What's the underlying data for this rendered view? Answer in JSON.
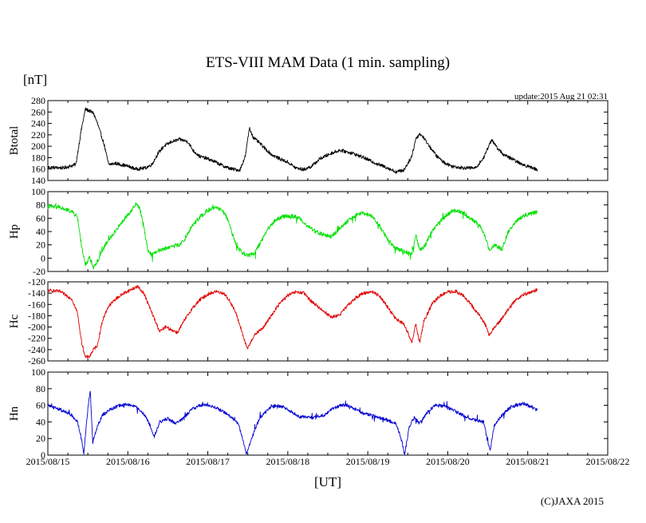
{
  "chart_data": {
    "type": "line",
    "title": "ETS-VIII MAM Data (1 min. sampling)",
    "unit_label": "[nT]",
    "update_text": "update:2015 Aug 21 02:31",
    "xlabel": "[UT]",
    "credit": "(C)JAXA 2015",
    "x_ticks": [
      "2015/08/15",
      "2015/08/16",
      "2015/08/17",
      "2015/08/18",
      "2015/08/19",
      "2015/08/20",
      "2015/08/21",
      "2015/08/22"
    ],
    "x_unit": "days since 2015/08/15 00:00 UT",
    "xlim": [
      0,
      7
    ],
    "panels": [
      {
        "name": "Btotal",
        "ylabel": "Btotal",
        "color": "#000000",
        "ylim": [
          140,
          280
        ],
        "ticks": [
          140,
          160,
          180,
          200,
          220,
          240,
          260,
          280
        ],
        "noise": 3,
        "spiky": false,
        "series": [
          [
            0,
            163
          ],
          [
            0.2,
            162
          ],
          [
            0.35,
            168
          ],
          [
            0.42,
            230
          ],
          [
            0.47,
            265
          ],
          [
            0.52,
            262
          ],
          [
            0.57,
            258
          ],
          [
            0.62,
            240
          ],
          [
            0.7,
            205
          ],
          [
            0.76,
            168
          ],
          [
            0.85,
            170
          ],
          [
            1.0,
            165
          ],
          [
            1.1,
            160
          ],
          [
            1.22,
            162
          ],
          [
            1.3,
            168
          ],
          [
            1.38,
            188
          ],
          [
            1.45,
            200
          ],
          [
            1.55,
            208
          ],
          [
            1.65,
            212
          ],
          [
            1.75,
            208
          ],
          [
            1.82,
            192
          ],
          [
            1.9,
            182
          ],
          [
            2.0,
            178
          ],
          [
            2.1,
            172
          ],
          [
            2.2,
            165
          ],
          [
            2.3,
            160
          ],
          [
            2.4,
            158
          ],
          [
            2.47,
            183
          ],
          [
            2.52,
            232
          ],
          [
            2.57,
            215
          ],
          [
            2.63,
            208
          ],
          [
            2.7,
            198
          ],
          [
            2.8,
            185
          ],
          [
            2.9,
            178
          ],
          [
            3.0,
            172
          ],
          [
            3.1,
            162
          ],
          [
            3.2,
            159
          ],
          [
            3.3,
            165
          ],
          [
            3.4,
            178
          ],
          [
            3.55,
            188
          ],
          [
            3.65,
            193
          ],
          [
            3.8,
            188
          ],
          [
            3.95,
            180
          ],
          [
            4.1,
            170
          ],
          [
            4.25,
            162
          ],
          [
            4.35,
            155
          ],
          [
            4.45,
            158
          ],
          [
            4.5,
            170
          ],
          [
            4.55,
            182
          ],
          [
            4.6,
            213
          ],
          [
            4.65,
            222
          ],
          [
            4.7,
            215
          ],
          [
            4.78,
            198
          ],
          [
            4.86,
            183
          ],
          [
            4.95,
            172
          ],
          [
            5.05,
            165
          ],
          [
            5.2,
            162
          ],
          [
            5.35,
            162
          ],
          [
            5.45,
            180
          ],
          [
            5.5,
            197
          ],
          [
            5.55,
            212
          ],
          [
            5.6,
            200
          ],
          [
            5.7,
            185
          ],
          [
            5.8,
            178
          ],
          [
            5.9,
            170
          ],
          [
            6.0,
            165
          ],
          [
            6.1,
            160
          ],
          [
            6.12,
            159
          ]
        ]
      },
      {
        "name": "Hp",
        "ylabel": "Hp",
        "color": "#00e000",
        "ylim": [
          -20,
          100
        ],
        "ticks": [
          -20,
          0,
          20,
          40,
          60,
          80,
          100
        ],
        "noise": 3,
        "spiky": true,
        "series": [
          [
            0,
            78
          ],
          [
            0.15,
            76
          ],
          [
            0.3,
            70
          ],
          [
            0.37,
            62
          ],
          [
            0.42,
            20
          ],
          [
            0.47,
            -12
          ],
          [
            0.52,
            2
          ],
          [
            0.57,
            -14
          ],
          [
            0.62,
            -5
          ],
          [
            0.68,
            12
          ],
          [
            0.75,
            25
          ],
          [
            0.85,
            42
          ],
          [
            0.95,
            58
          ],
          [
            1.05,
            72
          ],
          [
            1.1,
            82
          ],
          [
            1.15,
            75
          ],
          [
            1.2,
            48
          ],
          [
            1.25,
            12
          ],
          [
            1.3,
            5
          ],
          [
            1.35,
            10
          ],
          [
            1.45,
            14
          ],
          [
            1.55,
            18
          ],
          [
            1.65,
            20
          ],
          [
            1.72,
            30
          ],
          [
            1.8,
            48
          ],
          [
            1.9,
            62
          ],
          [
            2.0,
            72
          ],
          [
            2.1,
            76
          ],
          [
            2.18,
            72
          ],
          [
            2.25,
            58
          ],
          [
            2.3,
            38
          ],
          [
            2.38,
            14
          ],
          [
            2.43,
            8
          ],
          [
            2.5,
            4
          ],
          [
            2.58,
            6
          ],
          [
            2.65,
            22
          ],
          [
            2.75,
            44
          ],
          [
            2.85,
            58
          ],
          [
            2.95,
            63
          ],
          [
            3.05,
            63
          ],
          [
            3.15,
            60
          ],
          [
            3.25,
            48
          ],
          [
            3.35,
            40
          ],
          [
            3.45,
            35
          ],
          [
            3.55,
            33
          ],
          [
            3.65,
            44
          ],
          [
            3.75,
            56
          ],
          [
            3.85,
            64
          ],
          [
            3.95,
            68
          ],
          [
            4.05,
            63
          ],
          [
            4.15,
            48
          ],
          [
            4.25,
            28
          ],
          [
            4.35,
            15
          ],
          [
            4.45,
            10
          ],
          [
            4.55,
            6
          ],
          [
            4.6,
            35
          ],
          [
            4.65,
            12
          ],
          [
            4.72,
            20
          ],
          [
            4.8,
            40
          ],
          [
            4.9,
            55
          ],
          [
            5.0,
            66
          ],
          [
            5.1,
            72
          ],
          [
            5.2,
            68
          ],
          [
            5.3,
            58
          ],
          [
            5.4,
            50
          ],
          [
            5.48,
            28
          ],
          [
            5.52,
            12
          ],
          [
            5.58,
            20
          ],
          [
            5.68,
            14
          ],
          [
            5.75,
            38
          ],
          [
            5.85,
            55
          ],
          [
            5.95,
            64
          ],
          [
            6.05,
            67
          ],
          [
            6.12,
            70
          ]
        ]
      },
      {
        "name": "Hc",
        "ylabel": "Hc",
        "color": "#e00000",
        "ylim": [
          -260,
          -120
        ],
        "ticks": [
          -260,
          -240,
          -220,
          -200,
          -180,
          -160,
          -140,
          -120
        ],
        "noise": 3,
        "spiky": false,
        "series": [
          [
            0,
            -135
          ],
          [
            0.15,
            -137
          ],
          [
            0.3,
            -150
          ],
          [
            0.37,
            -175
          ],
          [
            0.42,
            -225
          ],
          [
            0.47,
            -254
          ],
          [
            0.52,
            -252
          ],
          [
            0.57,
            -240
          ],
          [
            0.62,
            -232
          ],
          [
            0.68,
            -190
          ],
          [
            0.75,
            -165
          ],
          [
            0.85,
            -150
          ],
          [
            0.95,
            -140
          ],
          [
            1.05,
            -133
          ],
          [
            1.12,
            -128
          ],
          [
            1.2,
            -140
          ],
          [
            1.28,
            -168
          ],
          [
            1.35,
            -192
          ],
          [
            1.4,
            -208
          ],
          [
            1.47,
            -200
          ],
          [
            1.55,
            -205
          ],
          [
            1.62,
            -210
          ],
          [
            1.7,
            -190
          ],
          [
            1.8,
            -168
          ],
          [
            1.9,
            -152
          ],
          [
            2.0,
            -142
          ],
          [
            2.1,
            -137
          ],
          [
            2.2,
            -140
          ],
          [
            2.28,
            -155
          ],
          [
            2.35,
            -175
          ],
          [
            2.42,
            -205
          ],
          [
            2.47,
            -230
          ],
          [
            2.5,
            -238
          ],
          [
            2.55,
            -222
          ],
          [
            2.6,
            -212
          ],
          [
            2.7,
            -200
          ],
          [
            2.8,
            -178
          ],
          [
            2.9,
            -158
          ],
          [
            3.0,
            -144
          ],
          [
            3.1,
            -138
          ],
          [
            3.2,
            -140
          ],
          [
            3.3,
            -155
          ],
          [
            3.45,
            -172
          ],
          [
            3.55,
            -183
          ],
          [
            3.65,
            -178
          ],
          [
            3.75,
            -162
          ],
          [
            3.85,
            -148
          ],
          [
            3.95,
            -140
          ],
          [
            4.05,
            -137
          ],
          [
            4.15,
            -145
          ],
          [
            4.25,
            -165
          ],
          [
            4.35,
            -185
          ],
          [
            4.45,
            -195
          ],
          [
            4.5,
            -210
          ],
          [
            4.55,
            -228
          ],
          [
            4.6,
            -195
          ],
          [
            4.65,
            -228
          ],
          [
            4.7,
            -190
          ],
          [
            4.8,
            -160
          ],
          [
            4.9,
            -145
          ],
          [
            5.0,
            -138
          ],
          [
            5.1,
            -137
          ],
          [
            5.2,
            -145
          ],
          [
            5.3,
            -162
          ],
          [
            5.4,
            -180
          ],
          [
            5.48,
            -198
          ],
          [
            5.52,
            -215
          ],
          [
            5.58,
            -200
          ],
          [
            5.65,
            -190
          ],
          [
            5.75,
            -170
          ],
          [
            5.85,
            -152
          ],
          [
            5.95,
            -142
          ],
          [
            6.05,
            -138
          ],
          [
            6.12,
            -134
          ]
        ]
      },
      {
        "name": "Hn",
        "ylabel": "Hn",
        "color": "#0000d0",
        "ylim": [
          0,
          100
        ],
        "ticks": [
          0,
          20,
          40,
          60,
          80,
          100
        ],
        "noise": 2,
        "spiky": true,
        "series": [
          [
            0,
            60
          ],
          [
            0.15,
            55
          ],
          [
            0.3,
            48
          ],
          [
            0.37,
            40
          ],
          [
            0.42,
            20
          ],
          [
            0.45,
            2
          ],
          [
            0.5,
            55
          ],
          [
            0.53,
            78
          ],
          [
            0.56,
            15
          ],
          [
            0.62,
            35
          ],
          [
            0.68,
            48
          ],
          [
            0.78,
            55
          ],
          [
            0.9,
            60
          ],
          [
            1.0,
            61
          ],
          [
            1.1,
            58
          ],
          [
            1.2,
            50
          ],
          [
            1.28,
            35
          ],
          [
            1.33,
            22
          ],
          [
            1.4,
            40
          ],
          [
            1.5,
            44
          ],
          [
            1.6,
            38
          ],
          [
            1.7,
            45
          ],
          [
            1.8,
            55
          ],
          [
            1.9,
            60
          ],
          [
            2.0,
            60
          ],
          [
            2.1,
            57
          ],
          [
            2.2,
            52
          ],
          [
            2.3,
            45
          ],
          [
            2.38,
            38
          ],
          [
            2.45,
            15
          ],
          [
            2.48,
            2
          ],
          [
            2.52,
            12
          ],
          [
            2.58,
            28
          ],
          [
            2.65,
            45
          ],
          [
            2.75,
            55
          ],
          [
            2.85,
            60
          ],
          [
            2.95,
            58
          ],
          [
            3.05,
            52
          ],
          [
            3.15,
            46
          ],
          [
            3.3,
            45
          ],
          [
            3.45,
            48
          ],
          [
            3.55,
            55
          ],
          [
            3.65,
            60
          ],
          [
            3.75,
            60
          ],
          [
            3.85,
            55
          ],
          [
            3.95,
            50
          ],
          [
            4.05,
            48
          ],
          [
            4.15,
            45
          ],
          [
            4.25,
            42
          ],
          [
            4.35,
            38
          ],
          [
            4.42,
            20
          ],
          [
            4.46,
            0
          ],
          [
            4.52,
            35
          ],
          [
            4.58,
            45
          ],
          [
            4.65,
            38
          ],
          [
            4.75,
            52
          ],
          [
            4.85,
            60
          ],
          [
            4.95,
            59
          ],
          [
            5.05,
            55
          ],
          [
            5.15,
            50
          ],
          [
            5.25,
            45
          ],
          [
            5.35,
            42
          ],
          [
            5.45,
            40
          ],
          [
            5.5,
            15
          ],
          [
            5.53,
            6
          ],
          [
            5.58,
            35
          ],
          [
            5.65,
            45
          ],
          [
            5.75,
            55
          ],
          [
            5.85,
            60
          ],
          [
            5.95,
            62
          ],
          [
            6.05,
            58
          ],
          [
            6.12,
            54
          ]
        ]
      }
    ]
  }
}
